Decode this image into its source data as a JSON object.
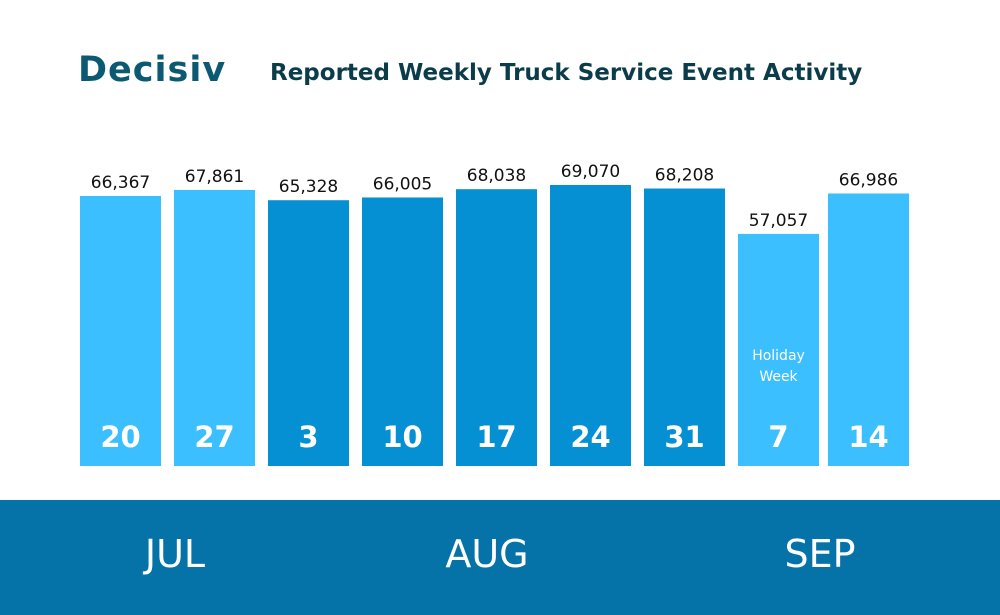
{
  "header": {
    "logo_text": "Decisiv",
    "title": "Reported Weekly Truck Service Event Activity"
  },
  "months": [
    "JUL",
    "AUG",
    "SEP"
  ],
  "colors": {
    "light_bar": "#3cbfff",
    "dark_bar": "#0690d4",
    "band": "#0573a8",
    "logo": "#0b5a72",
    "label": "#111111"
  },
  "chart_data": {
    "type": "bar",
    "title": "Reported Weekly Truck Service Event Activity",
    "xlabel": "",
    "ylabel": "",
    "categories": [
      "20",
      "27",
      "3",
      "10",
      "17",
      "24",
      "31",
      "7",
      "14"
    ],
    "category_months": [
      "JUL",
      "JUL",
      "AUG",
      "AUG",
      "AUG",
      "AUG",
      "AUG",
      "SEP",
      "SEP"
    ],
    "values": [
      66367,
      67861,
      65328,
      66005,
      68038,
      69070,
      68208,
      57057,
      66986
    ],
    "value_labels": [
      "66,367",
      "67,861",
      "65,328",
      "66,005",
      "68,038",
      "69,070",
      "68,208",
      "57,057",
      "66,986"
    ],
    "shades": [
      "light",
      "light",
      "dark",
      "dark",
      "dark",
      "dark",
      "dark",
      "light",
      "light"
    ],
    "annotations": [
      {
        "category": "7",
        "text": "Holiday Week"
      }
    ],
    "ylim": [
      0,
      69070
    ],
    "grid": false
  }
}
